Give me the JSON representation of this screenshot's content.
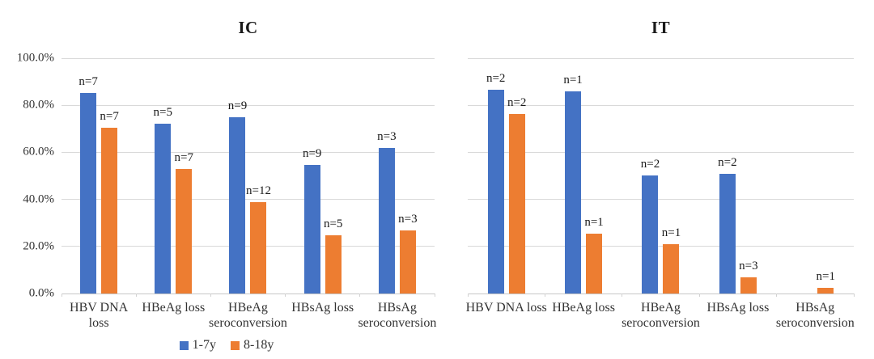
{
  "figure": {
    "background": "#ffffff",
    "accent_blue": "#4472C4",
    "accent_orange": "#ED7D31",
    "gridline_color": "#d9d9d9"
  },
  "legend": {
    "items": [
      {
        "label": "1-7y",
        "color": "#4472C4"
      },
      {
        "label": "8-18y",
        "color": "#ED7D31"
      }
    ]
  },
  "chart_data": [
    {
      "type": "bar",
      "title": "IC",
      "categories": [
        "HBV DNA\nloss",
        "HBeAg loss",
        "HBeAg\nseroconversion",
        "HBsAg loss",
        "HBsAg\nseroconversion"
      ],
      "series": [
        {
          "name": "1-7y",
          "color": "#4472C4",
          "values": [
            85.3,
            72.0,
            75.0,
            54.8,
            62.0
          ],
          "labels": [
            "n=7",
            "n=5",
            "n=9",
            "n=9",
            "n=3"
          ]
        },
        {
          "name": "8-18y",
          "color": "#ED7D31",
          "values": [
            70.3,
            53.0,
            39.0,
            24.6,
            26.8
          ],
          "labels": [
            "n=7",
            "n=7",
            "n=12",
            "n=5",
            "n=3"
          ]
        }
      ],
      "ylabel": "",
      "xlabel": "",
      "ylim": [
        0,
        100
      ],
      "ytick_step": 20,
      "ytick_labels": [
        "100.0%",
        "80.0%",
        "60.0%",
        "40.0%",
        "20.0%",
        "0.0%"
      ],
      "show_y_labels": true,
      "grid": true,
      "legend_position": "bottom"
    },
    {
      "type": "bar",
      "title": "IT",
      "categories": [
        "HBV DNA loss",
        "HBeAg loss",
        "HBeAg\nseroconversion",
        "HBsAg loss",
        "HBsAg\nseroconversion"
      ],
      "series": [
        {
          "name": "1-7y",
          "color": "#4472C4",
          "values": [
            86.6,
            85.8,
            50.2,
            51.0,
            null
          ],
          "labels": [
            "n=2",
            "n=1",
            "n=2",
            "n=2",
            null
          ]
        },
        {
          "name": "8-18y",
          "color": "#ED7D31",
          "values": [
            76.4,
            25.5,
            20.8,
            7.0,
            2.3
          ],
          "labels": [
            "n=2",
            "n=1",
            "n=1",
            "n=3",
            "n=1"
          ]
        }
      ],
      "ylabel": "",
      "xlabel": "",
      "ylim": [
        0,
        100
      ],
      "ytick_step": 20,
      "ytick_labels": [
        "100.0%",
        "80.0%",
        "60.0%",
        "40.0%",
        "20.0%",
        "0.0%"
      ],
      "show_y_labels": false,
      "grid": true,
      "legend_position": "none"
    }
  ]
}
